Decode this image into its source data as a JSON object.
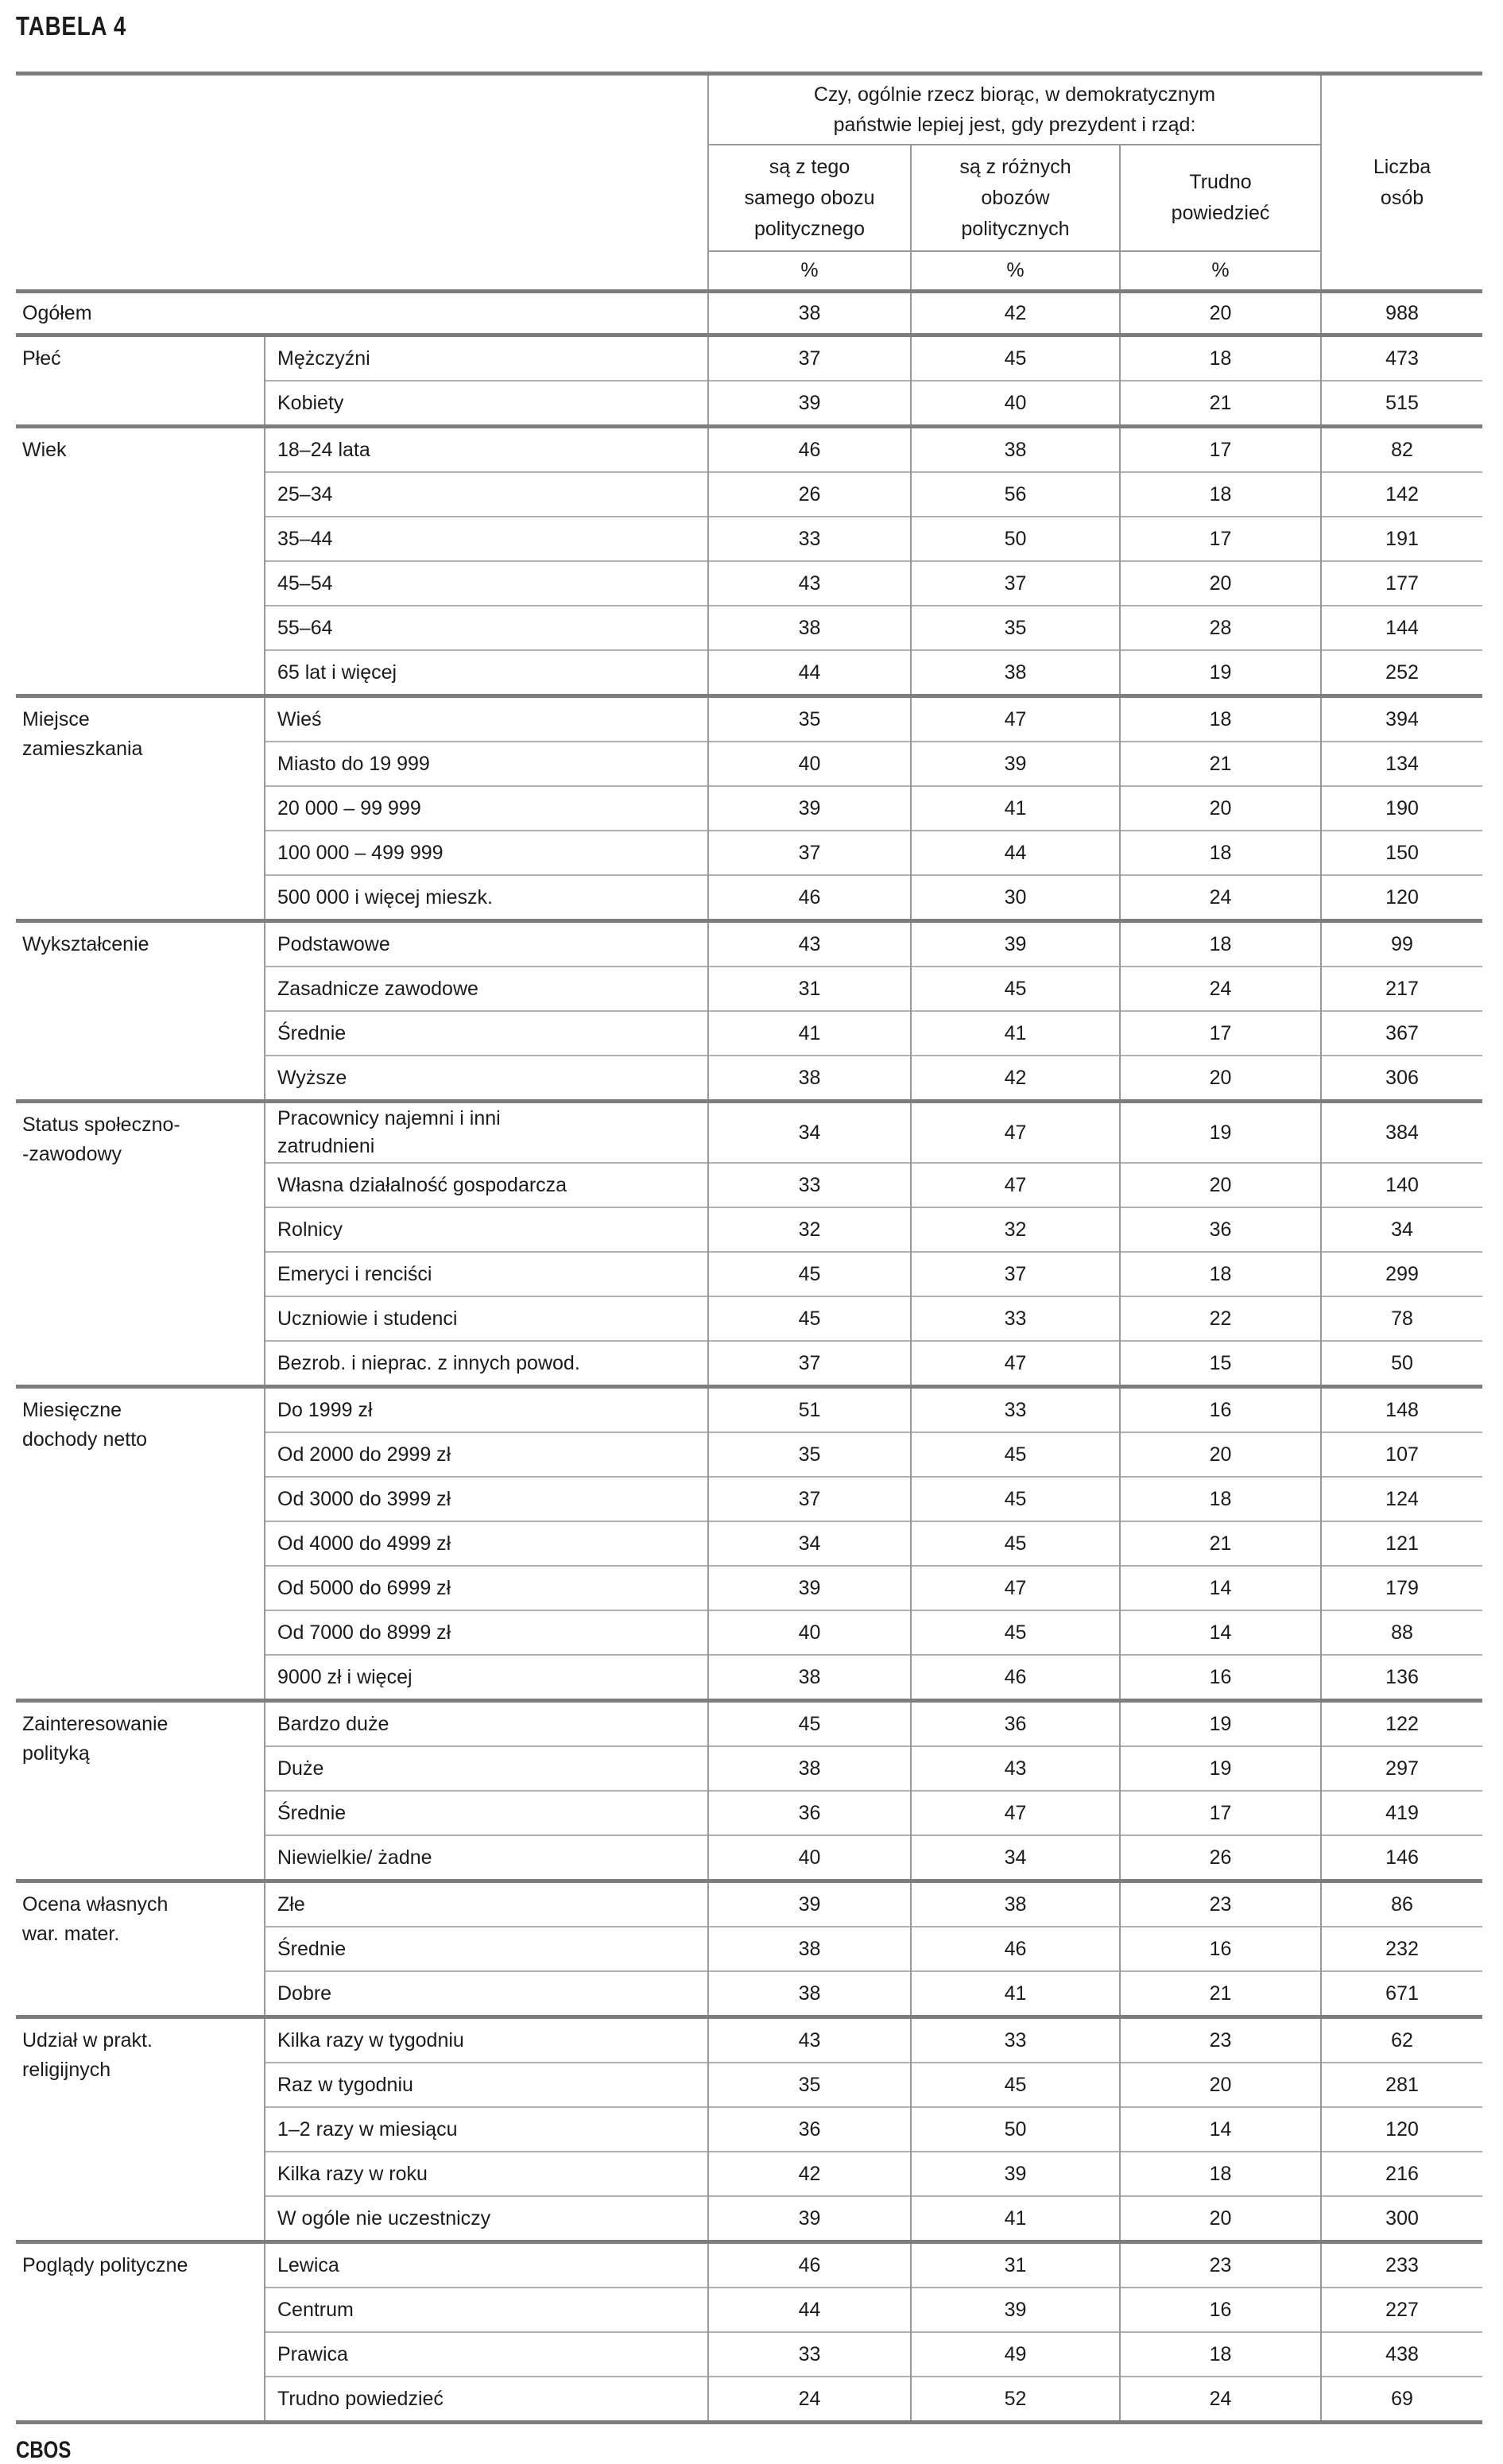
{
  "page": {
    "title": "TABELA 4",
    "footer": "CBOS"
  },
  "table": {
    "question": "Czy, ogólnie rzecz biorąc, w demokratycznym\npaństwie lepiej jest, gdy prezydent i rząd:",
    "columns": [
      "są z tego\nsamego obozu\npolitycznego",
      "są z różnych\nobozów\npolitycznych",
      "Trudno\npowiedzieć"
    ],
    "count_column": "Liczba\nosób",
    "percent_symbol": "%",
    "overall": {
      "label": "Ogółem",
      "values": [
        38,
        42,
        20
      ],
      "n": 988
    },
    "groups": [
      {
        "category": "Płeć",
        "rows": [
          {
            "label": "Mężczyźni",
            "values": [
              37,
              45,
              18
            ],
            "n": 473
          },
          {
            "label": "Kobiety",
            "values": [
              39,
              40,
              21
            ],
            "n": 515
          }
        ]
      },
      {
        "category": "Wiek",
        "rows": [
          {
            "label": "18–24 lata",
            "values": [
              46,
              38,
              17
            ],
            "n": 82
          },
          {
            "label": "25–34",
            "values": [
              26,
              56,
              18
            ],
            "n": 142
          },
          {
            "label": "35–44",
            "values": [
              33,
              50,
              17
            ],
            "n": 191
          },
          {
            "label": "45–54",
            "values": [
              43,
              37,
              20
            ],
            "n": 177
          },
          {
            "label": "55–64",
            "values": [
              38,
              35,
              28
            ],
            "n": 144
          },
          {
            "label": "65 lat i więcej",
            "values": [
              44,
              38,
              19
            ],
            "n": 252
          }
        ]
      },
      {
        "category": "Miejsce\nzamieszkania",
        "rows": [
          {
            "label": "Wieś",
            "values": [
              35,
              47,
              18
            ],
            "n": 394
          },
          {
            "label": "Miasto do 19 999",
            "values": [
              40,
              39,
              21
            ],
            "n": 134
          },
          {
            "label": "20 000 – 99 999",
            "values": [
              39,
              41,
              20
            ],
            "n": 190
          },
          {
            "label": "100 000 – 499 999",
            "values": [
              37,
              44,
              18
            ],
            "n": 150
          },
          {
            "label": "500 000 i więcej mieszk.",
            "values": [
              46,
              30,
              24
            ],
            "n": 120
          }
        ]
      },
      {
        "category": "Wykształcenie",
        "rows": [
          {
            "label": "Podstawowe",
            "values": [
              43,
              39,
              18
            ],
            "n": 99
          },
          {
            "label": "Zasadnicze zawodowe",
            "values": [
              31,
              45,
              24
            ],
            "n": 217
          },
          {
            "label": "Średnie",
            "values": [
              41,
              41,
              17
            ],
            "n": 367
          },
          {
            "label": "Wyższe",
            "values": [
              38,
              42,
              20
            ],
            "n": 306
          }
        ]
      },
      {
        "category": "Status społeczno-\n-zawodowy",
        "rows": [
          {
            "label": "Pracownicy najemni i inni\nzatrudnieni",
            "values": [
              34,
              47,
              19
            ],
            "n": 384
          },
          {
            "label": "Własna działalność gospodarcza",
            "values": [
              33,
              47,
              20
            ],
            "n": 140
          },
          {
            "label": "Rolnicy",
            "values": [
              32,
              32,
              36
            ],
            "n": 34
          },
          {
            "label": "Emeryci i renciści",
            "values": [
              45,
              37,
              18
            ],
            "n": 299
          },
          {
            "label": "Uczniowie i studenci",
            "values": [
              45,
              33,
              22
            ],
            "n": 78
          },
          {
            "label": "Bezrob. i nieprac. z innych powod.",
            "values": [
              37,
              47,
              15
            ],
            "n": 50
          }
        ]
      },
      {
        "category": "Miesięczne\ndochody netto",
        "rows": [
          {
            "label": "Do 1999 zł",
            "values": [
              51,
              33,
              16
            ],
            "n": 148
          },
          {
            "label": "Od 2000 do 2999 zł",
            "values": [
              35,
              45,
              20
            ],
            "n": 107
          },
          {
            "label": "Od 3000 do 3999 zł",
            "values": [
              37,
              45,
              18
            ],
            "n": 124
          },
          {
            "label": "Od 4000 do 4999 zł",
            "values": [
              34,
              45,
              21
            ],
            "n": 121
          },
          {
            "label": "Od 5000 do 6999 zł",
            "values": [
              39,
              47,
              14
            ],
            "n": 179
          },
          {
            "label": "Od 7000 do 8999 zł",
            "values": [
              40,
              45,
              14
            ],
            "n": 88
          },
          {
            "label": "9000 zł i więcej",
            "values": [
              38,
              46,
              16
            ],
            "n": 136
          }
        ]
      },
      {
        "category": "Zainteresowanie\npolityką",
        "rows": [
          {
            "label": "Bardzo duże",
            "values": [
              45,
              36,
              19
            ],
            "n": 122
          },
          {
            "label": "Duże",
            "values": [
              38,
              43,
              19
            ],
            "n": 297
          },
          {
            "label": "Średnie",
            "values": [
              36,
              47,
              17
            ],
            "n": 419
          },
          {
            "label": "Niewielkie/ żadne",
            "values": [
              40,
              34,
              26
            ],
            "n": 146
          }
        ]
      },
      {
        "category": "Ocena własnych\nwar. mater.",
        "rows": [
          {
            "label": "Złe",
            "values": [
              39,
              38,
              23
            ],
            "n": 86
          },
          {
            "label": "Średnie",
            "values": [
              38,
              46,
              16
            ],
            "n": 232
          },
          {
            "label": "Dobre",
            "values": [
              38,
              41,
              21
            ],
            "n": 671
          }
        ]
      },
      {
        "category": "Udział w prakt.\nreligijnych",
        "rows": [
          {
            "label": "Kilka razy w tygodniu",
            "values": [
              43,
              33,
              23
            ],
            "n": 62
          },
          {
            "label": "Raz w tygodniu",
            "values": [
              35,
              45,
              20
            ],
            "n": 281
          },
          {
            "label": "1–2 razy w miesiącu",
            "values": [
              36,
              50,
              14
            ],
            "n": 120
          },
          {
            "label": "Kilka razy w roku",
            "values": [
              42,
              39,
              18
            ],
            "n": 216
          },
          {
            "label": "W ogóle nie uczestniczy",
            "values": [
              39,
              41,
              20
            ],
            "n": 300
          }
        ]
      },
      {
        "category": "Poglądy polityczne",
        "rows": [
          {
            "label": "Lewica",
            "values": [
              46,
              31,
              23
            ],
            "n": 233
          },
          {
            "label": "Centrum",
            "values": [
              44,
              39,
              16
            ],
            "n": 227
          },
          {
            "label": "Prawica",
            "values": [
              33,
              49,
              18
            ],
            "n": 438
          },
          {
            "label": "Trudno powiedzieć",
            "values": [
              24,
              52,
              24
            ],
            "n": 69
          }
        ]
      }
    ]
  },
  "colors": {
    "text": "#1b1b1b",
    "rule_thick": "#7d7d7d",
    "rule_thin": "#b0b0b0",
    "rule_vertical": "#989898",
    "background": "#ffffff"
  }
}
